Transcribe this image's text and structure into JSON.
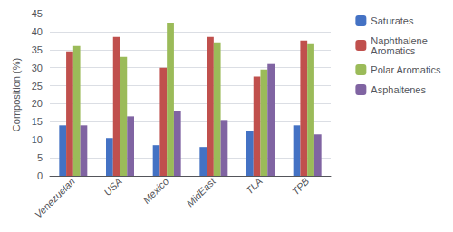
{
  "chart_data": {
    "type": "bar",
    "categories": [
      "Venezuelan",
      "USA",
      "Mexico",
      "MidEast",
      "TLA",
      "TPB"
    ],
    "series": [
      {
        "name": "Saturates",
        "color": "#4472C4",
        "values": [
          14,
          10.5,
          8.5,
          8,
          12.5,
          14
        ]
      },
      {
        "name": "Naphthalene\nAromatics",
        "color": "#C0504D",
        "values": [
          34.5,
          38.5,
          30,
          38.5,
          27.5,
          37.5
        ]
      },
      {
        "name": "Polar Aromatics",
        "color": "#9BBB59",
        "values": [
          36,
          33,
          42.5,
          37,
          29.5,
          36.5
        ]
      },
      {
        "name": "Asphaltenes",
        "color": "#8064A2",
        "values": [
          14,
          16.5,
          18,
          15.5,
          31,
          11.5
        ]
      }
    ],
    "ylabel": "Composition (%)",
    "ylim": [
      0,
      45
    ],
    "yticks": [
      0,
      5,
      10,
      15,
      20,
      25,
      30,
      35,
      40,
      45
    ],
    "grid": true,
    "legend": "right"
  }
}
